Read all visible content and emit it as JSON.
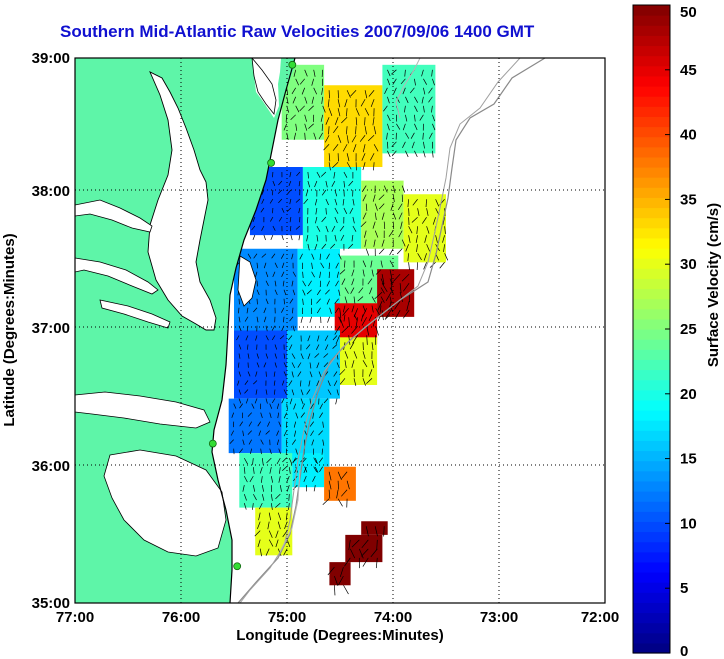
{
  "title": "Southern Mid-Atlantic Raw Velocities 2007/09/06 1400 GMT",
  "axes": {
    "xlabel": "Longitude (Degrees:Minutes)",
    "ylabel": "Latitude (Degrees:Minutes)",
    "x_ticks": [
      "77:00",
      "76:00",
      "75:00",
      "74:00",
      "73:00",
      "72:00"
    ],
    "y_ticks": [
      "39:00",
      "38:00",
      "37:00",
      "36:00",
      "35:00"
    ],
    "grid": "dotted"
  },
  "colorbar": {
    "label": "Surface Velocity (cm/s)",
    "ticks": [
      "50",
      "45",
      "40",
      "35",
      "30",
      "25",
      "20",
      "15",
      "10",
      "5",
      "0"
    ],
    "range": [
      0,
      50
    ],
    "colormap": "jet"
  },
  "colors": {
    "land": "#5ef5a8",
    "title": "#1010d0",
    "station": "#33dd33",
    "bathymetry": "#8a8a8a",
    "coast": "#000000"
  },
  "chart_data": {
    "type": "heatmap",
    "title": "Southern Mid-Atlantic Raw Velocities 2007/09/06 1400 GMT",
    "xlabel": "Longitude (Degrees:Minutes)",
    "ylabel": "Latitude (Degrees:Minutes)",
    "xlim": [
      -77,
      -72
    ],
    "ylim": [
      35,
      39
    ],
    "colorbar_label": "Surface Velocity (cm/s)",
    "clim": [
      0,
      50
    ],
    "stations": [
      {
        "lon": -74.95,
        "lat": 38.95
      },
      {
        "lon": -75.15,
        "lat": 38.23
      },
      {
        "lon": -75.7,
        "lat": 36.17
      },
      {
        "lon": -75.47,
        "lat": 35.27
      }
    ],
    "velocity_regions": [
      {
        "lon_min": -75.05,
        "lon_max": -74.65,
        "lat_min": 38.4,
        "lat_max": 38.95,
        "speed": 25
      },
      {
        "lon_min": -74.65,
        "lon_max": -74.1,
        "lat_min": 38.2,
        "lat_max": 38.8,
        "speed": 33
      },
      {
        "lon_min": -74.1,
        "lon_max": -73.6,
        "lat_min": 38.3,
        "lat_max": 38.95,
        "speed": 22
      },
      {
        "lon_min": -75.35,
        "lon_max": -74.85,
        "lat_min": 37.7,
        "lat_max": 38.2,
        "speed": 10
      },
      {
        "lon_min": -74.85,
        "lon_max": -74.3,
        "lat_min": 37.6,
        "lat_max": 38.2,
        "speed": 20
      },
      {
        "lon_min": -74.3,
        "lon_max": -73.9,
        "lat_min": 37.6,
        "lat_max": 38.1,
        "speed": 27
      },
      {
        "lon_min": -73.9,
        "lon_max": -73.5,
        "lat_min": 37.5,
        "lat_max": 38.0,
        "speed": 30
      },
      {
        "lon_min": -75.5,
        "lon_max": -74.9,
        "lat_min": 37.0,
        "lat_max": 37.6,
        "speed": 13
      },
      {
        "lon_min": -74.9,
        "lon_max": -74.5,
        "lat_min": 37.1,
        "lat_max": 37.6,
        "speed": 18
      },
      {
        "lon_min": -74.5,
        "lon_max": -73.95,
        "lat_min": 37.1,
        "lat_max": 37.55,
        "speed": 24
      },
      {
        "lon_min": -74.55,
        "lon_max": -74.15,
        "lat_min": 36.9,
        "lat_max": 37.2,
        "speed": 45
      },
      {
        "lon_min": -74.15,
        "lon_max": -73.8,
        "lat_min": 37.1,
        "lat_max": 37.45,
        "speed": 48
      },
      {
        "lon_min": -75.5,
        "lon_max": -75.0,
        "lat_min": 36.5,
        "lat_max": 37.0,
        "speed": 10
      },
      {
        "lon_min": -75.0,
        "lon_max": -74.5,
        "lat_min": 36.5,
        "lat_max": 37.0,
        "speed": 16
      },
      {
        "lon_min": -74.5,
        "lon_max": -74.15,
        "lat_min": 36.6,
        "lat_max": 36.95,
        "speed": 30
      },
      {
        "lon_min": -75.55,
        "lon_max": -75.05,
        "lat_min": 36.1,
        "lat_max": 36.5,
        "speed": 12
      },
      {
        "lon_min": -75.05,
        "lon_max": -74.6,
        "lat_min": 36.0,
        "lat_max": 36.5,
        "speed": 17
      },
      {
        "lon_min": -75.45,
        "lon_max": -74.95,
        "lat_min": 35.7,
        "lat_max": 36.1,
        "speed": 22
      },
      {
        "lon_min": -74.95,
        "lon_max": -74.65,
        "lat_min": 35.85,
        "lat_max": 36.1,
        "speed": 18
      },
      {
        "lon_min": -74.65,
        "lon_max": -74.35,
        "lat_min": 35.75,
        "lat_max": 36.0,
        "speed": 38
      },
      {
        "lon_min": -75.3,
        "lon_max": -74.95,
        "lat_min": 35.35,
        "lat_max": 35.7,
        "speed": 30
      },
      {
        "lon_min": -74.45,
        "lon_max": -74.1,
        "lat_min": 35.3,
        "lat_max": 35.5,
        "speed": 50
      },
      {
        "lon_min": -74.3,
        "lon_max": -74.05,
        "lat_min": 35.5,
        "lat_max": 35.6,
        "speed": 50
      },
      {
        "lon_min": -74.6,
        "lon_max": -74.4,
        "lat_min": 35.13,
        "lat_max": 35.3,
        "speed": 50
      }
    ]
  }
}
